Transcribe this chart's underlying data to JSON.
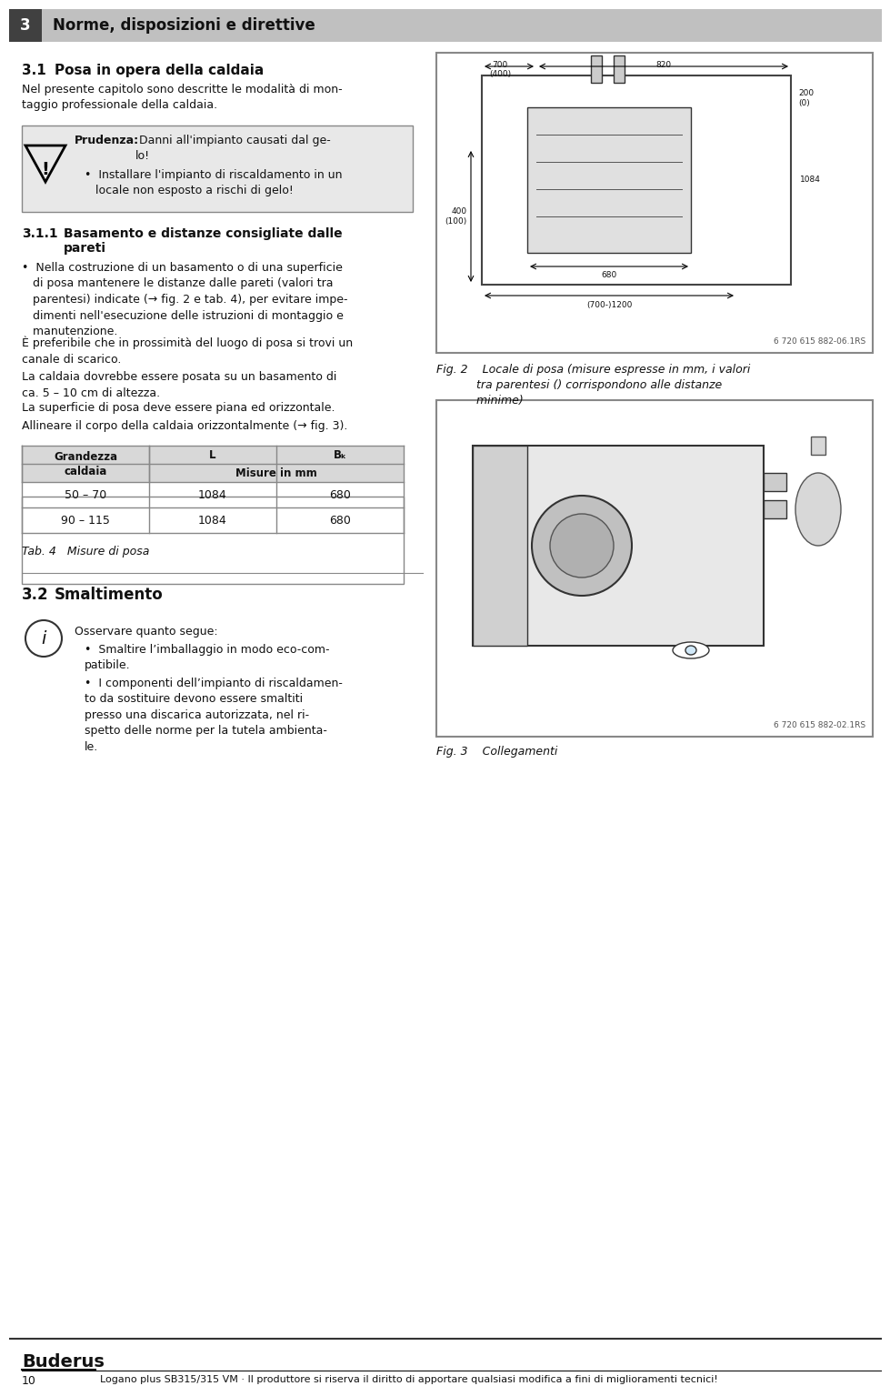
{
  "bg_color": "#ffffff",
  "header_bg": "#c8c8c8",
  "header_text": "3    Norme, disposizioni e direttive",
  "header_num": "3",
  "header_label": "Norme, disposizioni e direttive",
  "section_title": "3.1   Posa in opera della caldaia",
  "section_intro": "Nel presente capitolo sono descritte le modalità di mon-\ntaggio professionale della caldaia.",
  "caution_title": "Prudenza:",
  "caution_text1": " Danni all’impianto causati dal ge-\nlo!",
  "caution_bullet": "Installare l’impianto di riscaldamento in un\nlocale non esposto a rischi di gelo!",
  "subsection_title": "3.1.1   Basamento e distanze consigliate dalle\n          pareti",
  "body_paragraphs": [
    "•  Nella costruzione di un basamento o di una superficie\n   di posa mantenere le distanze dalle pareti (valori tra\n   parentesi) indicate (→ fig. 2 e tab. 4), per evitare impe-\n   dimenti nell’esecuzione delle istruzioni di montaggio e\n   manutenzione.",
    "È preferibile che in prossimità del luogo di posa si trovi un\ncanale di scarico.",
    "La caldaia dovrebbe essere posata su un basamento di\nca. 5 – 10 cm di altezza.",
    "La superficie di posa deve essere piana ed orizzontale.",
    "Allineare il corpo della caldaia orizzontalmente (→ fig. 3)."
  ],
  "table_header_col1": "Grandezza\ncaldaia",
  "table_header_col2": "Misure in mm",
  "table_col_l": "L",
  "table_col_bk": "Bₖ",
  "table_rows": [
    [
      "50 – 70",
      "1084",
      "680"
    ],
    [
      "90 – 115",
      "1084",
      "680"
    ]
  ],
  "table_caption": "Tab. 4   Misure di posa",
  "fig2_caption": "Fig. 2    Locale di posa (misure espresse in mm, i valori\n           tra parentesi () corrispondono alle distanze\n           minime)",
  "fig3_caption": "Fig. 3    Collegamenti",
  "section2_title": "3.2   Smaltimento",
  "section2_intro": "Osservare quanto segue:",
  "section2_bullets": [
    "Smaltire l’imballaggio in modo eco-com-\npatibile.",
    "I componenti dell’impianto di riscaldamen-\nto da sostituire devono essere smaltiti\npresso una discarica autorizzata, nel ri-\nspetto delle norme per la tutela ambienta-\nle."
  ],
  "footer_brand": "Buderus",
  "footer_page": "10",
  "footer_text": "Logano plus SB315/315 VM · Il produttore si riserva il diritto di apportare qualsiasi modifica a fini di miglioramenti tecnici!"
}
